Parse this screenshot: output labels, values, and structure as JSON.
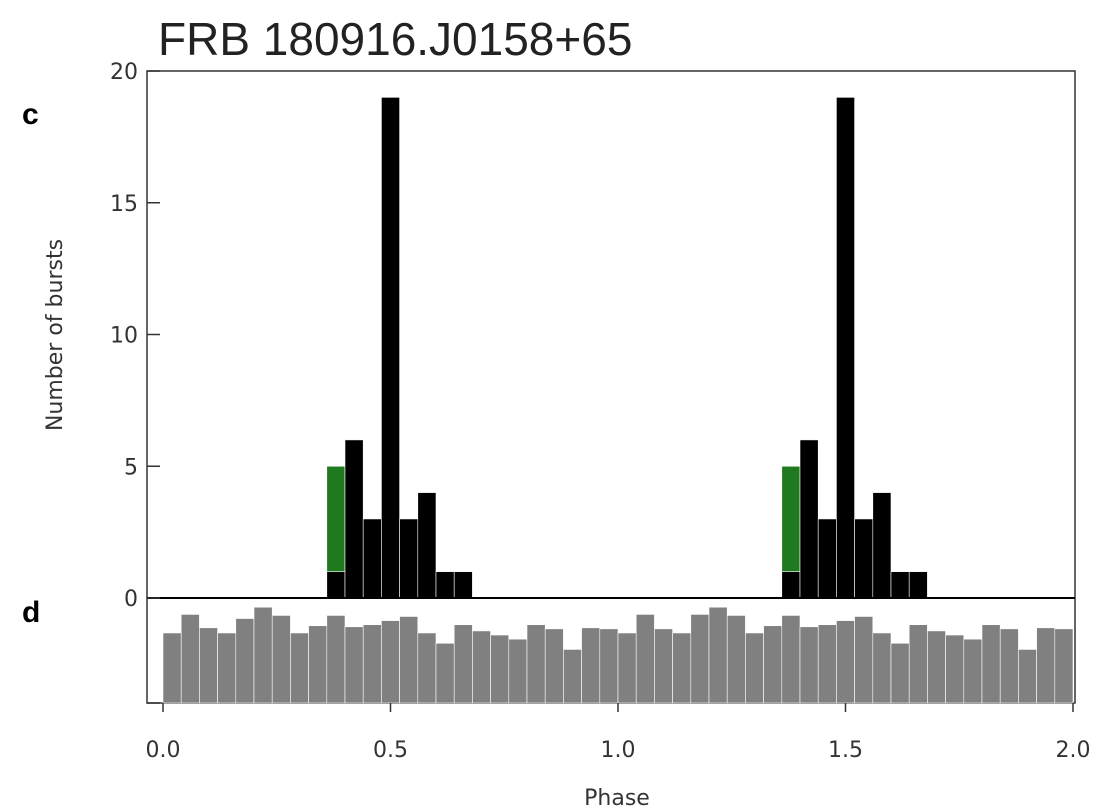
{
  "title": "FRB 180916.J0158+65",
  "chart_data": [
    {
      "type": "bar",
      "panel_label": "c",
      "xlabel": "",
      "ylabel": "Number of bursts",
      "xlim": [
        0.0,
        2.0
      ],
      "ylim": [
        0,
        20
      ],
      "y_ticks": [
        "0",
        "5",
        "10",
        "15",
        "20"
      ],
      "bin_width": 0.04,
      "x": [
        0.36,
        0.4,
        0.44,
        0.48,
        0.52,
        0.56,
        0.6,
        0.64,
        1.36,
        1.4,
        1.44,
        1.48,
        1.52,
        1.56,
        1.6,
        1.64
      ],
      "series": [
        {
          "color": "#000000",
          "values": [
            1,
            6,
            3,
            19,
            3,
            4,
            1,
            1,
            1,
            6,
            3,
            19,
            3,
            4,
            1,
            1
          ]
        },
        {
          "color": "#1f7a1f",
          "values": [
            4,
            0,
            0,
            0,
            0,
            0,
            0,
            0,
            4,
            0,
            0,
            0,
            0,
            0,
            0,
            0
          ]
        }
      ],
      "stacked": true,
      "grid": false
    },
    {
      "type": "bar",
      "panel_label": "d",
      "xlabel": "Phase",
      "x_ticks": [
        "0.0",
        "0.5",
        "1.0",
        "1.5",
        "2.0"
      ],
      "xlim": [
        0.0,
        2.0
      ],
      "ylim": [
        0,
        1
      ],
      "bin_width": 0.04,
      "bar_color": "#808080",
      "values": [
        0.68,
        0.86,
        0.73,
        0.68,
        0.82,
        0.93,
        0.85,
        0.68,
        0.75,
        0.85,
        0.74,
        0.76,
        0.8,
        0.84,
        0.68,
        0.58,
        0.76,
        0.7,
        0.66,
        0.62,
        0.76,
        0.72,
        0.52,
        0.73,
        0.72,
        0.68,
        0.86,
        0.72,
        0.68,
        0.86,
        0.93,
        0.85,
        0.68,
        0.75,
        0.85,
        0.74,
        0.76,
        0.8,
        0.84,
        0.68,
        0.58,
        0.76,
        0.7,
        0.66,
        0.62,
        0.76,
        0.72,
        0.52,
        0.73,
        0.72
      ]
    }
  ]
}
